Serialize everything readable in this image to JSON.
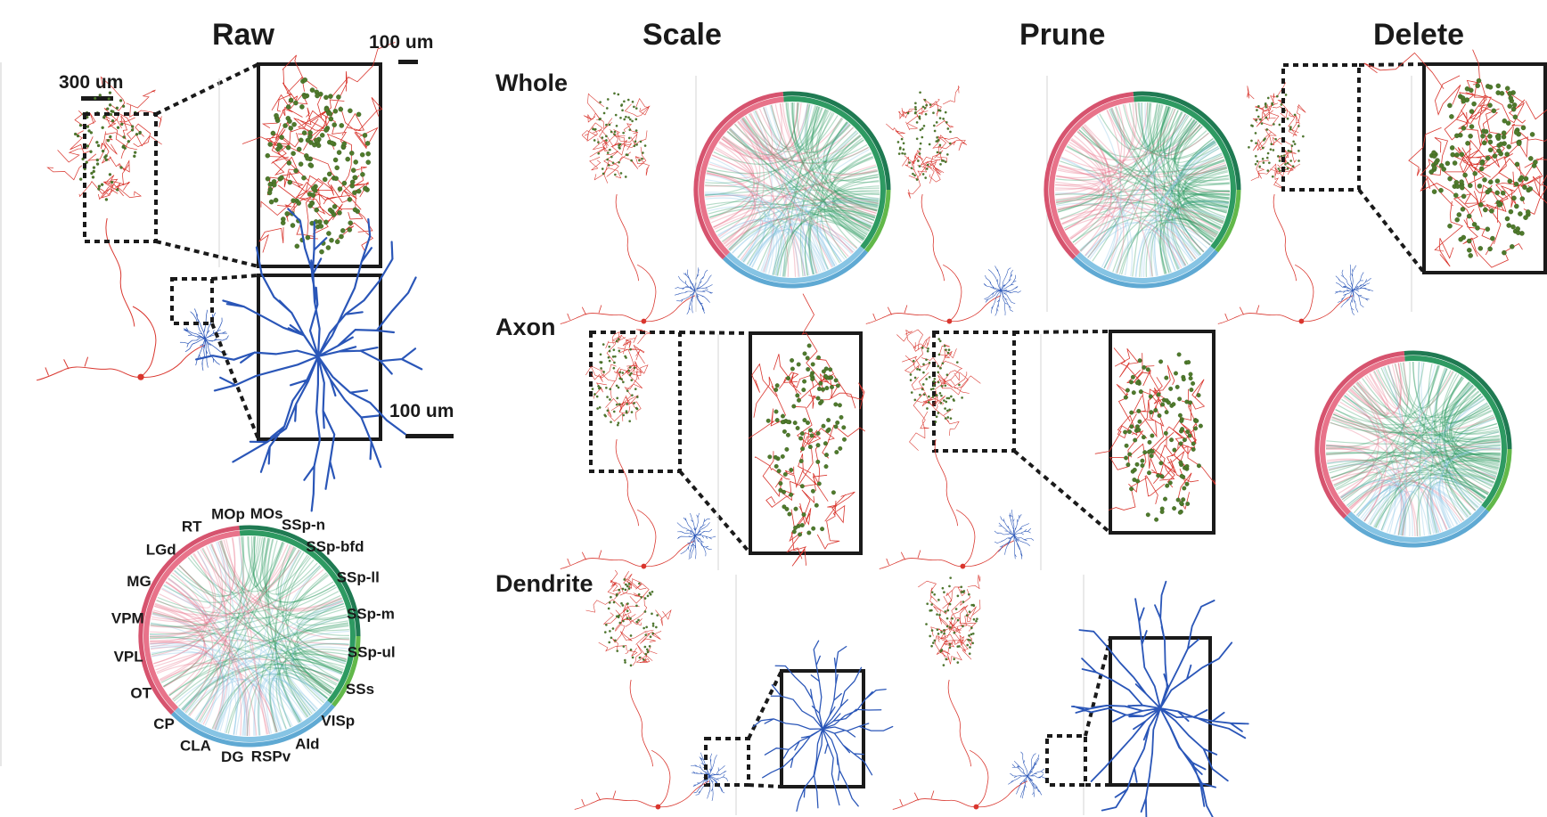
{
  "headers": {
    "raw": "Raw",
    "scale": "Scale",
    "prune": "Prune",
    "delete": "Delete"
  },
  "rows": {
    "whole": "Whole",
    "axon": "Axon",
    "dendrite": "Dendrite"
  },
  "scalebars": {
    "big": "300 um",
    "small_top": "100 um",
    "small_bottom": "100 um"
  },
  "regions": [
    "MOp",
    "MOs",
    "SSp-n",
    "SSp-bfd",
    "SSp-ll",
    "SSp-m",
    "SSp-ul",
    "SSs",
    "VISp",
    "AId",
    "RSPv",
    "DG",
    "CLA",
    "CP",
    "OT",
    "VPL",
    "VPM",
    "MG",
    "LGd",
    "RT"
  ],
  "colors": {
    "axon": "#d9362e",
    "dendrite": "#2a56b8",
    "bouton": "#4f7a2c",
    "thalamus": "#e8738a",
    "cortex": "#2e9a62",
    "striatum": "#86c4e4"
  }
}
